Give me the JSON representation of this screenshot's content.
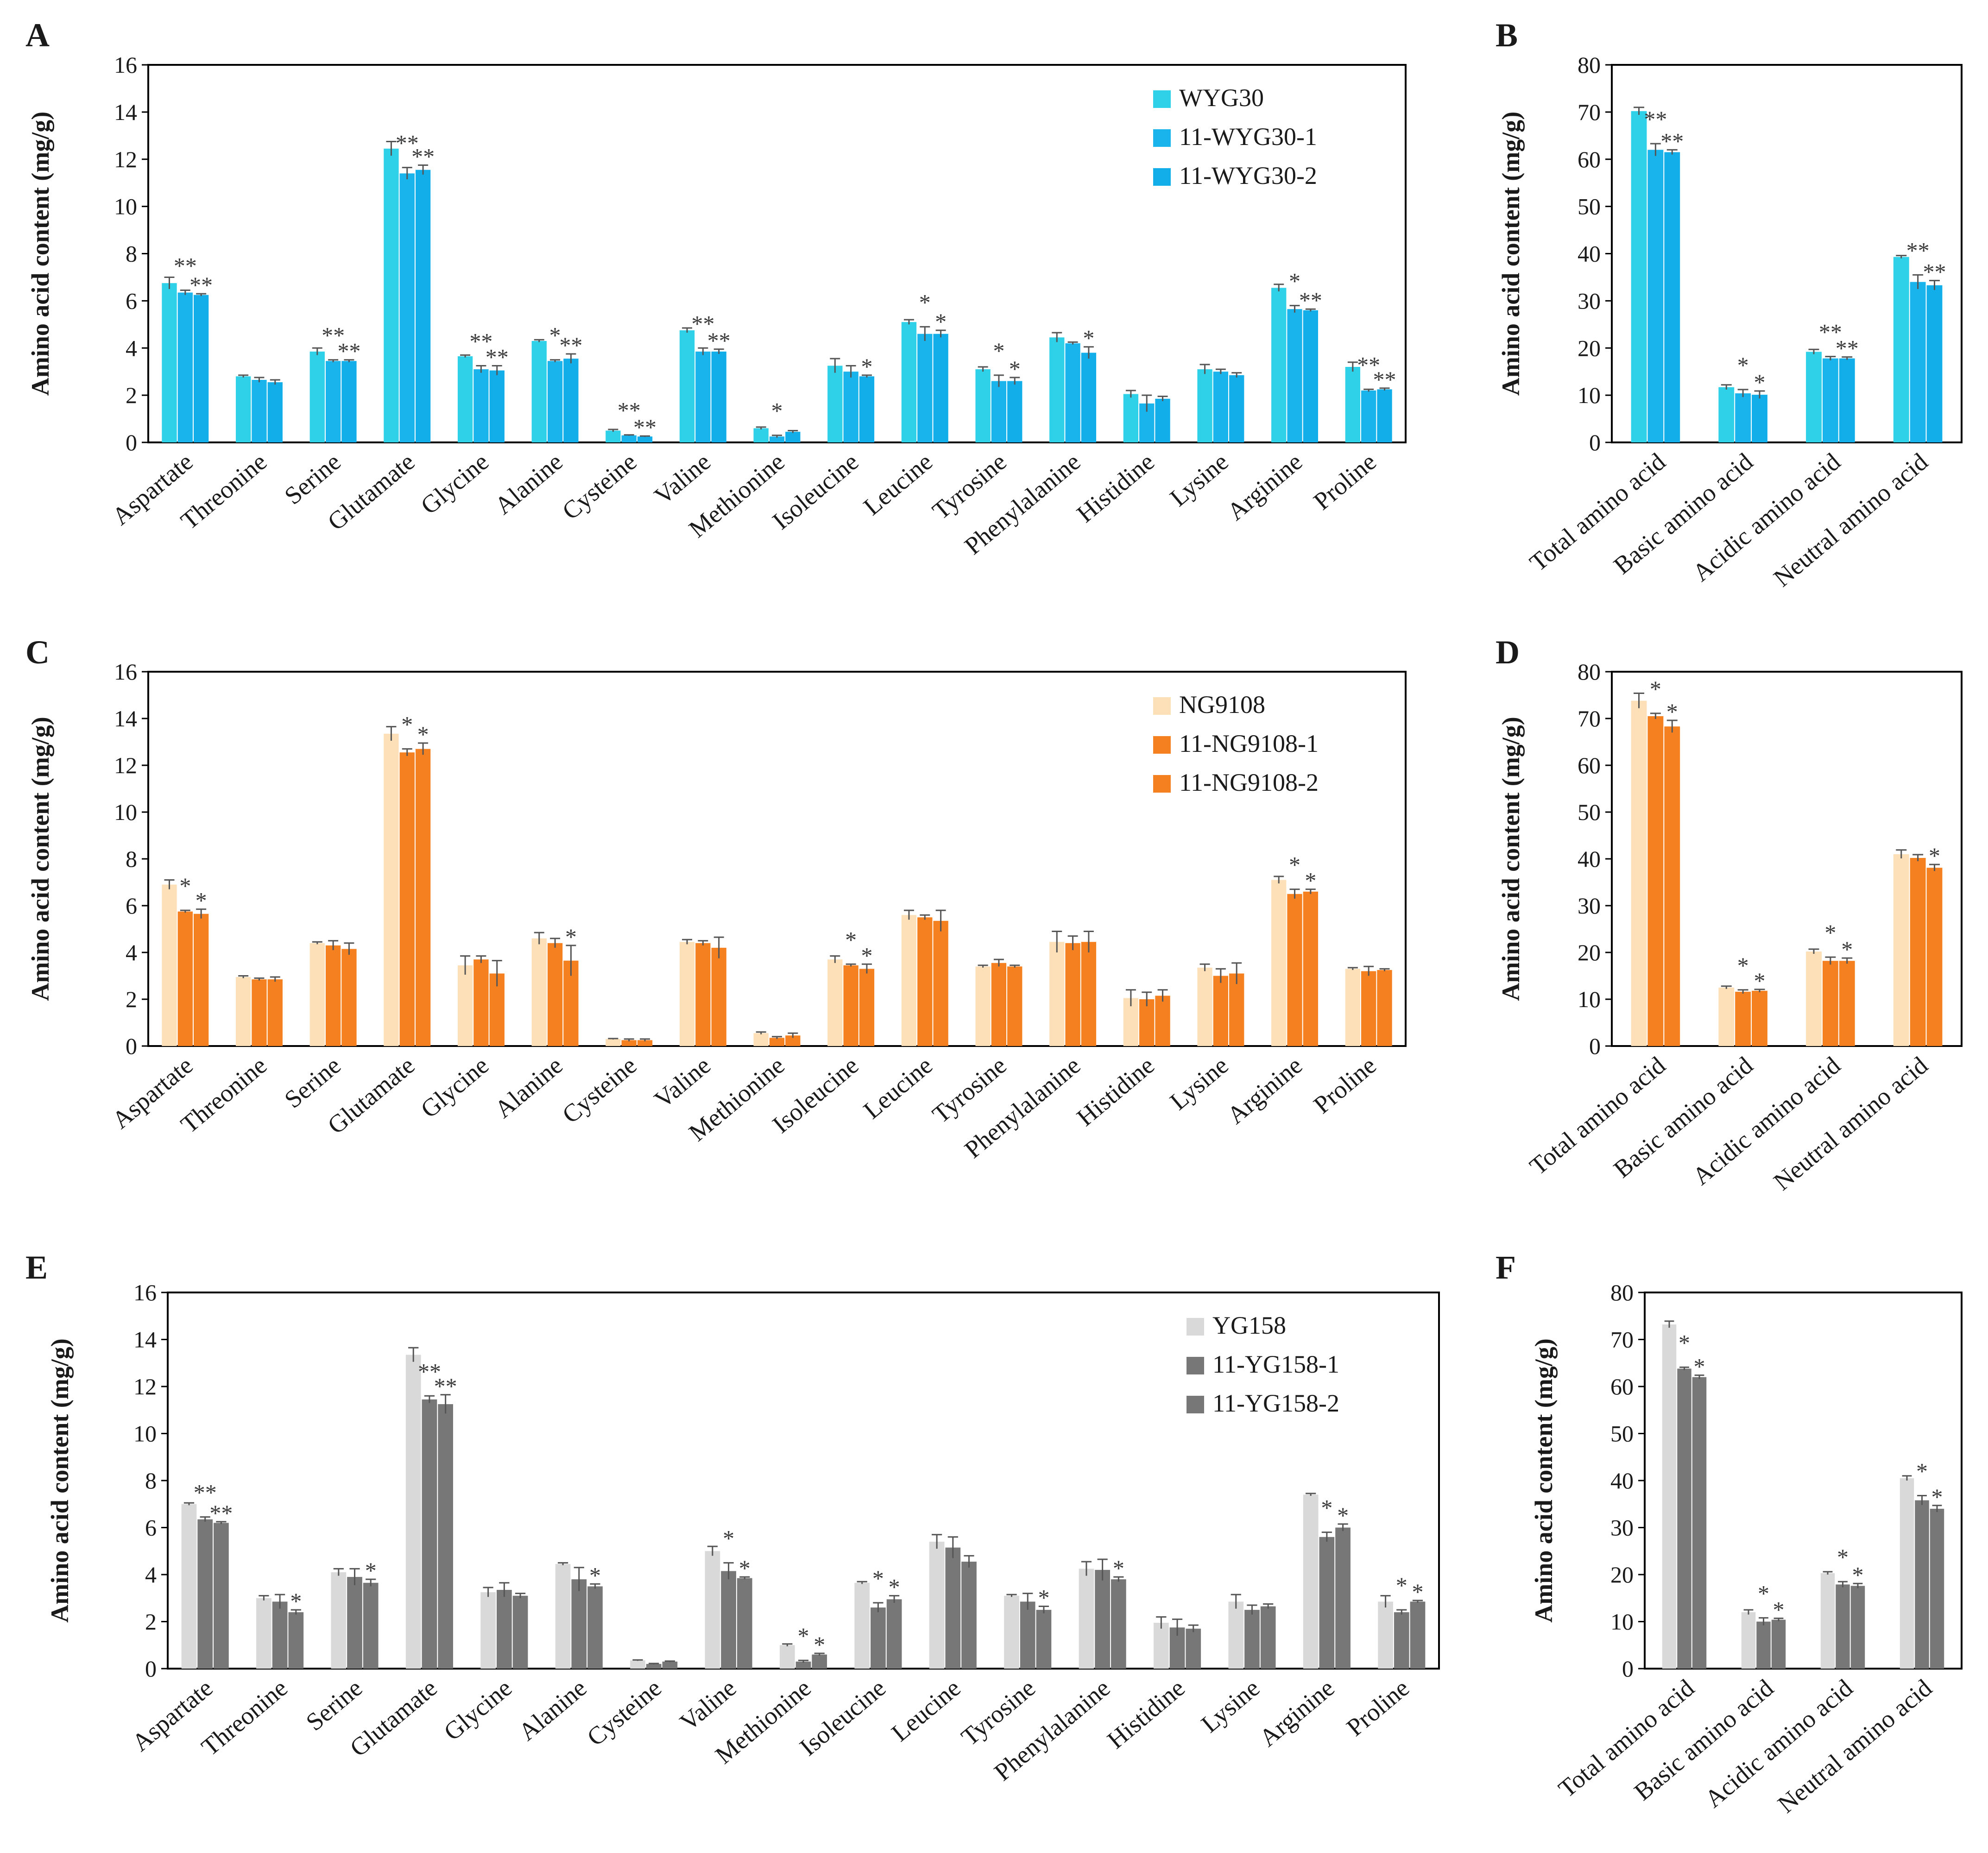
{
  "figure": {
    "panels": {
      "A": {
        "letter": "A"
      },
      "B": {
        "letter": "B"
      },
      "C": {
        "letter": "C"
      },
      "D": {
        "letter": "D"
      },
      "E": {
        "letter": "E"
      },
      "F": {
        "letter": "F"
      }
    }
  },
  "chart_data": [
    {
      "id": "A",
      "type": "bar",
      "title": "",
      "xlabel": "",
      "ylabel": "Amino acid content (mg/g)",
      "ylim": [
        0,
        16
      ],
      "yticks": [
        "0",
        "2",
        "4",
        "6",
        "8",
        "10",
        "12",
        "14",
        "16"
      ],
      "grid": false,
      "legend_position": "top-right",
      "categories": [
        "Aspartate",
        "Threonine",
        "Serine",
        "Glutamate",
        "Glycine",
        "Alanine",
        "Cysteine",
        "Valine",
        "Methionine",
        "Isoleucine",
        "Leucine",
        "Tyrosine",
        "Phenylalanine",
        "Histidine",
        "Lysine",
        "Arginine",
        "Proline"
      ],
      "colors": [
        "#2fd1e8",
        "#1ab4ec",
        "#12aeea"
      ],
      "series": [
        {
          "name": "WYG30",
          "values": [
            6.75,
            2.8,
            3.85,
            12.45,
            3.65,
            4.3,
            0.5,
            4.75,
            0.6,
            3.25,
            5.1,
            3.1,
            4.45,
            2.05,
            3.1,
            6.55,
            3.2
          ],
          "errors": [
            0.25,
            0.05,
            0.15,
            0.3,
            0.05,
            0.05,
            0.05,
            0.1,
            0.05,
            0.3,
            0.1,
            0.1,
            0.2,
            0.15,
            0.2,
            0.15,
            0.2
          ],
          "marks": [
            "",
            "",
            "",
            "",
            "",
            "",
            "",
            "",
            "",
            "",
            "",
            "",
            "",
            "",
            "",
            "",
            ""
          ]
        },
        {
          "name": "11-WYG30-1",
          "values": [
            6.35,
            2.65,
            3.45,
            11.4,
            3.1,
            3.45,
            0.3,
            3.85,
            0.25,
            3.0,
            4.6,
            2.6,
            4.2,
            1.65,
            3.0,
            5.65,
            2.2
          ],
          "errors": [
            0.1,
            0.1,
            0.05,
            0.25,
            0.15,
            0.05,
            0.02,
            0.15,
            0.05,
            0.25,
            0.3,
            0.25,
            0.05,
            0.35,
            0.1,
            0.15,
            0.05
          ],
          "marks": [
            "**",
            "",
            "**",
            "**",
            "**",
            "*",
            "**",
            "**",
            "*",
            "",
            "*",
            "*",
            "",
            "",
            "",
            "*",
            "**"
          ]
        },
        {
          "name": "11-WYG30-2",
          "values": [
            6.25,
            2.55,
            3.45,
            11.55,
            3.05,
            3.55,
            0.25,
            3.85,
            0.45,
            2.8,
            4.6,
            2.6,
            3.8,
            1.85,
            2.85,
            5.6,
            2.25
          ],
          "errors": [
            0.05,
            0.1,
            0.05,
            0.2,
            0.2,
            0.2,
            0.02,
            0.1,
            0.05,
            0.05,
            0.15,
            0.15,
            0.25,
            0.1,
            0.1,
            0.05,
            0.05
          ],
          "marks": [
            "**",
            "",
            "**",
            "**",
            "**",
            "**",
            "**",
            "**",
            "",
            "*",
            "*",
            "*",
            "*",
            "",
            "",
            "**",
            "**"
          ]
        }
      ]
    },
    {
      "id": "B",
      "type": "bar",
      "title": "",
      "xlabel": "",
      "ylabel": "Amino acid content (mg/g)",
      "ylim": [
        0,
        80
      ],
      "yticks": [
        "0",
        "10",
        "20",
        "30",
        "40",
        "50",
        "60",
        "70",
        "80"
      ],
      "grid": false,
      "categories": [
        "Total amino acid",
        "Basic amino acid",
        "Acidic amino acid",
        "Neutral amino acid"
      ],
      "colors": [
        "#2fd1e8",
        "#1ab4ec",
        "#12aeea"
      ],
      "series": [
        {
          "name": "WYG30",
          "values": [
            70.2,
            11.7,
            19.2,
            39.3
          ],
          "errors": [
            0.8,
            0.5,
            0.5,
            0.3
          ],
          "marks": [
            "",
            "",
            "",
            ""
          ]
        },
        {
          "name": "11-WYG30-1",
          "values": [
            62.0,
            10.4,
            17.8,
            34.0
          ],
          "errors": [
            1.3,
            0.8,
            0.4,
            1.5
          ],
          "marks": [
            "**",
            "*",
            "**",
            "**"
          ]
        },
        {
          "name": "11-WYG30-2",
          "values": [
            61.5,
            10.1,
            17.8,
            33.3
          ],
          "errors": [
            0.5,
            0.8,
            0.3,
            1.0
          ],
          "marks": [
            "**",
            "*",
            "**",
            "**"
          ]
        }
      ]
    },
    {
      "id": "C",
      "type": "bar",
      "title": "",
      "xlabel": "",
      "ylabel": "Amino acid content (mg/g)",
      "ylim": [
        0,
        16
      ],
      "yticks": [
        "0",
        "2",
        "4",
        "6",
        "8",
        "10",
        "12",
        "14",
        "16"
      ],
      "grid": false,
      "legend_position": "top-right",
      "categories": [
        "Aspartate",
        "Threonine",
        "Serine",
        "Glutamate",
        "Glycine",
        "Alanine",
        "Cysteine",
        "Valine",
        "Methionine",
        "Isoleucine",
        "Leucine",
        "Tyrosine",
        "Phenylalanine",
        "Histidine",
        "Lysine",
        "Arginine",
        "Proline"
      ],
      "colors": [
        "#fde0b8",
        "#f4801f",
        "#f4801f"
      ],
      "series": [
        {
          "name": "NG9108",
          "values": [
            6.9,
            2.95,
            4.4,
            13.35,
            3.45,
            4.6,
            0.3,
            4.45,
            0.55,
            3.7,
            5.6,
            3.4,
            4.45,
            2.05,
            3.35,
            7.1,
            3.3
          ],
          "errors": [
            0.2,
            0.05,
            0.05,
            0.3,
            0.4,
            0.25,
            0.02,
            0.1,
            0.05,
            0.15,
            0.2,
            0.05,
            0.45,
            0.35,
            0.15,
            0.15,
            0.05
          ],
          "marks": [
            "",
            "",
            "",
            "",
            "",
            "",
            "",
            "",
            "",
            "",
            "",
            "",
            "",
            "",
            "",
            "",
            ""
          ]
        },
        {
          "name": "11-NG9108-1",
          "values": [
            5.75,
            2.85,
            4.3,
            12.55,
            3.7,
            4.4,
            0.25,
            4.4,
            0.35,
            3.45,
            5.5,
            3.55,
            4.4,
            2.0,
            3.0,
            6.5,
            3.2
          ],
          "errors": [
            0.05,
            0.05,
            0.2,
            0.15,
            0.15,
            0.2,
            0.05,
            0.1,
            0.05,
            0.05,
            0.1,
            0.15,
            0.3,
            0.3,
            0.3,
            0.2,
            0.2
          ],
          "marks": [
            "*",
            "",
            "",
            "*",
            "",
            "",
            "",
            "",
            "",
            "*",
            "",
            "",
            "",
            "",
            "",
            "*",
            ""
          ]
        },
        {
          "name": "11-NG9108-2",
          "values": [
            5.65,
            2.85,
            4.15,
            12.7,
            3.1,
            3.65,
            0.25,
            4.2,
            0.45,
            3.3,
            5.35,
            3.4,
            4.45,
            2.15,
            3.1,
            6.6,
            3.25
          ],
          "errors": [
            0.2,
            0.1,
            0.25,
            0.25,
            0.55,
            0.65,
            0.05,
            0.45,
            0.1,
            0.2,
            0.45,
            0.05,
            0.45,
            0.25,
            0.45,
            0.1,
            0.05
          ],
          "marks": [
            "*",
            "",
            "",
            "*",
            "",
            "*",
            "",
            "",
            "",
            "*",
            "",
            "",
            "",
            "",
            "",
            "*",
            ""
          ]
        }
      ]
    },
    {
      "id": "D",
      "type": "bar",
      "title": "",
      "xlabel": "",
      "ylabel": "Amino acid content (mg/g)",
      "ylim": [
        0,
        80
      ],
      "yticks": [
        "0",
        "10",
        "20",
        "30",
        "40",
        "50",
        "60",
        "70",
        "80"
      ],
      "grid": false,
      "categories": [
        "Total amino acid",
        "Basic amino acid",
        "Acidic amino acid",
        "Neutral amino acid"
      ],
      "colors": [
        "#fde0b8",
        "#f4801f",
        "#f4801f"
      ],
      "series": [
        {
          "name": "NG9108",
          "values": [
            73.8,
            12.5,
            20.2,
            41.0
          ],
          "errors": [
            1.6,
            0.3,
            0.5,
            0.9
          ],
          "marks": [
            "",
            "",
            "",
            ""
          ]
        },
        {
          "name": "11-NG9108-1",
          "values": [
            70.5,
            11.6,
            18.2,
            40.2
          ],
          "errors": [
            0.6,
            0.4,
            0.8,
            0.7
          ],
          "marks": [
            "*",
            "*",
            "*",
            ""
          ]
        },
        {
          "name": "11-NG9108-2",
          "values": [
            68.3,
            11.8,
            18.2,
            38.1
          ],
          "errors": [
            1.3,
            0.3,
            0.6,
            0.7
          ],
          "marks": [
            "*",
            "*",
            "*",
            "*"
          ]
        }
      ]
    },
    {
      "id": "E",
      "type": "bar",
      "title": "",
      "xlabel": "",
      "ylabel": "Amino acid content (mg/g)",
      "ylim": [
        0,
        16
      ],
      "yticks": [
        "0",
        "2",
        "4",
        "6",
        "8",
        "10",
        "12",
        "14",
        "16"
      ],
      "grid": false,
      "legend_position": "top-right",
      "categories": [
        "Aspartate",
        "Threonine",
        "Serine",
        "Glutamate",
        "Glycine",
        "Alanine",
        "Cysteine",
        "Valine",
        "Methionine",
        "Isoleucine",
        "Leucine",
        "Tyrosine",
        "Phenylalanine",
        "Histidine",
        "Lysine",
        "Arginine",
        "Proline"
      ],
      "colors": [
        "#d9d9d9",
        "#777777",
        "#777777"
      ],
      "series": [
        {
          "name": "YG158",
          "values": [
            7.0,
            3.0,
            4.1,
            13.35,
            3.25,
            4.45,
            0.35,
            5.0,
            1.0,
            3.65,
            5.4,
            3.1,
            4.25,
            1.95,
            2.85,
            7.4,
            2.85
          ],
          "errors": [
            0.05,
            0.1,
            0.15,
            0.3,
            0.2,
            0.05,
            0.02,
            0.2,
            0.05,
            0.05,
            0.3,
            0.05,
            0.3,
            0.25,
            0.3,
            0.05,
            0.25
          ],
          "marks": [
            "",
            "",
            "",
            "",
            "",
            "",
            "",
            "",
            "",
            "",
            "",
            "",
            "",
            "",
            "",
            "",
            ""
          ]
        },
        {
          "name": "11-YG158-1",
          "values": [
            6.35,
            2.85,
            3.9,
            11.45,
            3.35,
            3.8,
            0.2,
            4.15,
            0.3,
            2.6,
            5.15,
            2.85,
            4.2,
            1.75,
            2.5,
            5.6,
            2.4
          ],
          "errors": [
            0.1,
            0.3,
            0.35,
            0.15,
            0.3,
            0.5,
            0.02,
            0.35,
            0.05,
            0.2,
            0.45,
            0.35,
            0.45,
            0.35,
            0.2,
            0.2,
            0.1
          ],
          "marks": [
            "**",
            "",
            "",
            "**",
            "",
            "",
            "",
            "*",
            "*",
            "*",
            "",
            "",
            "",
            "",
            "",
            "*",
            "*"
          ]
        },
        {
          "name": "11-YG158-2",
          "values": [
            6.2,
            2.4,
            3.65,
            11.25,
            3.1,
            3.5,
            0.3,
            3.85,
            0.6,
            2.95,
            4.55,
            2.5,
            3.8,
            1.7,
            2.65,
            6.0,
            2.85
          ],
          "errors": [
            0.05,
            0.1,
            0.15,
            0.4,
            0.1,
            0.1,
            0.02,
            0.05,
            0.05,
            0.15,
            0.25,
            0.15,
            0.1,
            0.15,
            0.1,
            0.15,
            0.05
          ],
          "marks": [
            "**",
            "*",
            "*",
            "**",
            "",
            "*",
            "",
            "*",
            "*",
            "*",
            "",
            "*",
            "*",
            "",
            "",
            "*",
            "*"
          ]
        }
      ]
    },
    {
      "id": "F",
      "type": "bar",
      "title": "",
      "xlabel": "",
      "ylabel": "Amino acid content (mg/g)",
      "ylim": [
        0,
        80
      ],
      "yticks": [
        "0",
        "10",
        "20",
        "30",
        "40",
        "50",
        "60",
        "70",
        "80"
      ],
      "grid": false,
      "categories": [
        "Total amino acid",
        "Basic amino acid",
        "Acidic amino acid",
        "Neutral amino acid"
      ],
      "colors": [
        "#d9d9d9",
        "#777777",
        "#777777"
      ],
      "series": [
        {
          "name": "YG158",
          "values": [
            73.2,
            12.0,
            20.3,
            40.5
          ],
          "errors": [
            0.7,
            0.5,
            0.3,
            0.5
          ],
          "marks": [
            "",
            "",
            "",
            ""
          ]
        },
        {
          "name": "11-YG158-1",
          "values": [
            63.8,
            10.0,
            17.9,
            35.8
          ],
          "errors": [
            0.3,
            0.8,
            0.6,
            1.0
          ],
          "marks": [
            "*",
            "*",
            "*",
            "*"
          ]
        },
        {
          "name": "11-YG158-2",
          "values": [
            62.0,
            10.4,
            17.6,
            34.0
          ],
          "errors": [
            0.4,
            0.3,
            0.5,
            0.7
          ],
          "marks": [
            "*",
            "*",
            "*",
            "*"
          ]
        }
      ]
    }
  ]
}
